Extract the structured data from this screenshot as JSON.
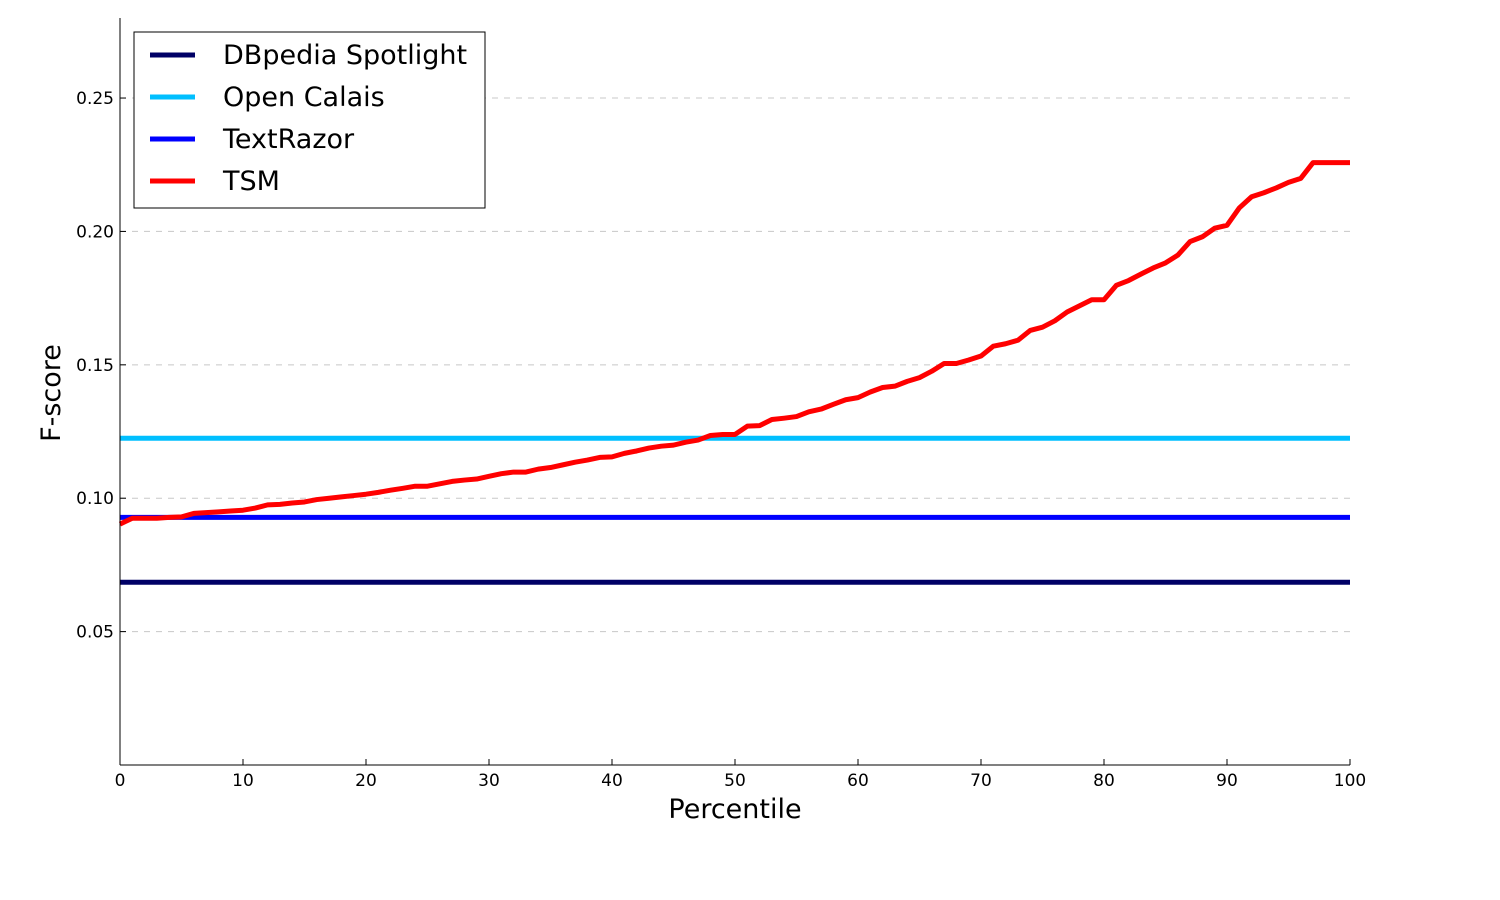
{
  "chart_data": {
    "type": "line",
    "title": "",
    "xlabel": "Percentile",
    "ylabel": "F-score",
    "xlim": [
      0,
      100
    ],
    "ylim": [
      0,
      0.28
    ],
    "x_ticks": [
      0,
      10,
      20,
      30,
      40,
      50,
      60,
      70,
      80,
      90,
      100
    ],
    "x_tick_labels": [
      "0",
      "10",
      "20",
      "30",
      "40",
      "50",
      "60",
      "70",
      "80",
      "90",
      "100"
    ],
    "y_ticks": [
      0.05,
      0.1,
      0.15,
      0.2,
      0.25
    ],
    "y_tick_labels": [
      "0.05",
      "0.10",
      "0.15",
      "0.20",
      "0.25"
    ],
    "grid": "horizontal dashed",
    "legend_position": "top-left",
    "series": [
      {
        "name": "DBpedia Spotlight",
        "color": "#000066",
        "x": [
          0,
          100
        ],
        "values": [
          0.0685,
          0.0685
        ]
      },
      {
        "name": "Open Calais",
        "color": "#00bfff",
        "x": [
          0,
          100
        ],
        "values": [
          0.1225,
          0.1225
        ]
      },
      {
        "name": "TextRazor",
        "color": "#0000ff",
        "x": [
          0,
          100
        ],
        "values": [
          0.0928,
          0.0928
        ]
      },
      {
        "name": "TSM",
        "color": "#ff0000",
        "x": [
          0,
          1,
          2,
          3,
          4,
          5,
          6,
          7,
          8,
          9,
          10,
          11,
          12,
          13,
          14,
          15,
          16,
          17,
          18,
          19,
          20,
          21,
          22,
          23,
          24,
          25,
          26,
          27,
          28,
          29,
          30,
          31,
          32,
          33,
          34,
          35,
          36,
          37,
          38,
          39,
          40,
          41,
          42,
          43,
          44,
          45,
          46,
          47,
          48,
          49,
          50,
          51,
          52,
          53,
          54,
          55,
          56,
          57,
          58,
          59,
          60,
          61,
          62,
          63,
          64,
          65,
          66,
          67,
          68,
          69,
          70,
          71,
          72,
          73,
          74,
          75,
          76,
          77,
          78,
          79,
          80,
          81,
          82,
          83,
          84,
          85,
          86,
          87,
          88,
          89,
          90,
          91,
          92,
          93,
          94,
          95,
          96,
          97,
          98,
          99,
          100
        ],
        "values": [
          0.0903,
          0.0925,
          0.0925,
          0.0925,
          0.0928,
          0.093,
          0.0943,
          0.0946,
          0.0949,
          0.0952,
          0.0955,
          0.0963,
          0.0975,
          0.0977,
          0.0982,
          0.0986,
          0.0995,
          0.1,
          0.1005,
          0.101,
          0.1015,
          0.1022,
          0.103,
          0.1037,
          0.1045,
          0.1045,
          0.1054,
          0.1063,
          0.1068,
          0.1072,
          0.1082,
          0.1092,
          0.1098,
          0.1098,
          0.1109,
          0.1115,
          0.1125,
          0.1135,
          0.1143,
          0.1153,
          0.1155,
          0.1168,
          0.1177,
          0.1188,
          0.1195,
          0.1199,
          0.121,
          0.1218,
          0.1235,
          0.1239,
          0.1239,
          0.127,
          0.1272,
          0.1295,
          0.13,
          0.1306,
          0.1324,
          0.1334,
          0.1352,
          0.1369,
          0.1377,
          0.1398,
          0.1415,
          0.142,
          0.1438,
          0.1452,
          0.1476,
          0.1505,
          0.1505,
          0.1518,
          0.1533,
          0.157,
          0.1579,
          0.1592,
          0.1629,
          0.1641,
          0.1665,
          0.1698,
          0.1721,
          0.1744,
          0.1744,
          0.1798,
          0.1816,
          0.184,
          0.1863,
          0.1882,
          0.1911,
          0.1962,
          0.198,
          0.2012,
          0.2023,
          0.2088,
          0.213,
          0.2145,
          0.2163,
          0.2184,
          0.2199,
          0.2258,
          0.2258,
          0.2258,
          0.2258
        ]
      }
    ]
  }
}
